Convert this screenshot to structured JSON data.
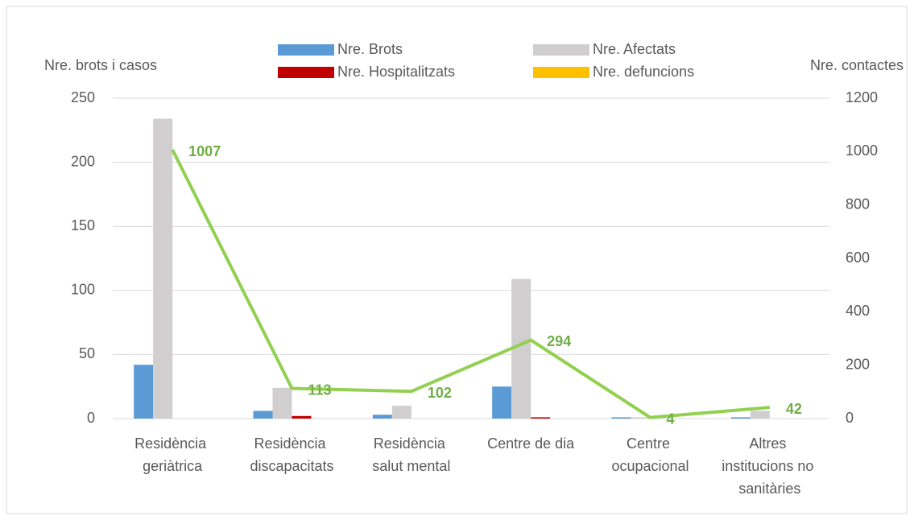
{
  "chart_data": {
    "type": "bar",
    "categories": [
      "Residència geriàtrica",
      "Residència discapacitats",
      "Residència salut mental",
      "Centre de dia",
      "Centre ocupacional",
      "Altres institucions no sanitàries"
    ],
    "series": [
      {
        "name": "Nre. Brots",
        "color": "#5b9bd5",
        "values": [
          42,
          6,
          3,
          25,
          1,
          1
        ]
      },
      {
        "name": "Nre. Afectats",
        "color": "#d0cece",
        "values": [
          234,
          24,
          10,
          109,
          1,
          6
        ]
      },
      {
        "name": "Nre. Hospitalitzats",
        "color": "#c00000",
        "values": [
          0,
          2,
          0,
          1,
          0,
          0
        ]
      },
      {
        "name": "Nre. defuncions",
        "color": "#ffc000",
        "values": [
          0,
          0,
          0,
          0,
          0,
          0
        ]
      },
      {
        "name": "Nre. contactes",
        "type": "line",
        "axis": "y2",
        "color": "#92d050",
        "values": [
          1007,
          113,
          102,
          294,
          4,
          42
        ]
      }
    ],
    "ylabel": "Nre. brots i casos",
    "y2label": "Nre. contactes",
    "ylim": [
      0,
      250
    ],
    "yticks": [
      0,
      50,
      100,
      150,
      200,
      250
    ],
    "y2lim": [
      0,
      1200
    ],
    "y2ticks": [
      0,
      200,
      400,
      600,
      800,
      1000,
      1200
    ],
    "grid": true
  }
}
